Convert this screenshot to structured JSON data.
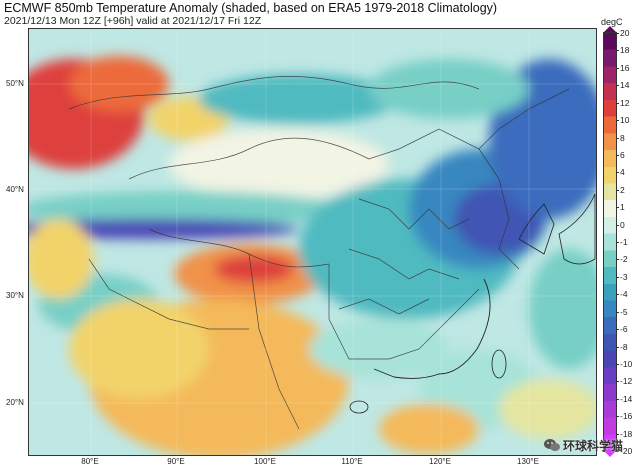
{
  "title": "ECMWF 850mb Temperature Anomaly (shaded, based on ERA5 1979-2018 Climatology)",
  "subtitle": "2021/12/13 Mon 12Z [+96h] valid at 2021/12/17 Fri 12Z",
  "lat_labels": [
    "50°N",
    "40°N",
    "30°N",
    "20°N"
  ],
  "lon_labels": [
    "80°E",
    "90°E",
    "100°E",
    "110°E",
    "120°E",
    "130°E"
  ],
  "colorbar": {
    "title": "degC",
    "ticks": [
      "20",
      "18",
      "16",
      "14",
      "12",
      "10",
      "8",
      "6",
      "4",
      "2",
      "1",
      "0",
      "-1",
      "-2",
      "-3",
      "-4",
      "-5",
      "-6",
      "-8",
      "-10",
      "-12",
      "-14",
      "-16",
      "-18",
      "-20"
    ],
    "colors": [
      "#5b0a5b",
      "#7a1a6e",
      "#9c2468",
      "#c4304f",
      "#de3f3c",
      "#ec6a3a",
      "#f0924a",
      "#f4b95a",
      "#f2d36a",
      "#e4e6a0",
      "#f2f4e4",
      "#d4efe6",
      "#a7e3d8",
      "#77cfc6",
      "#4fbac0",
      "#3aa1bd",
      "#3787c0",
      "#3a6cbd",
      "#3f55b4",
      "#4a45b5",
      "#6a3ec2",
      "#8b3acb",
      "#a93bd6",
      "#c13be0",
      "#d43bff"
    ]
  },
  "map": {
    "extent": {
      "lon_min": 75,
      "lon_max": 137,
      "lat_min": 15,
      "lat_max": 57
    },
    "background_color": "#bfe7e4"
  },
  "watermark": "环球科学猫"
}
